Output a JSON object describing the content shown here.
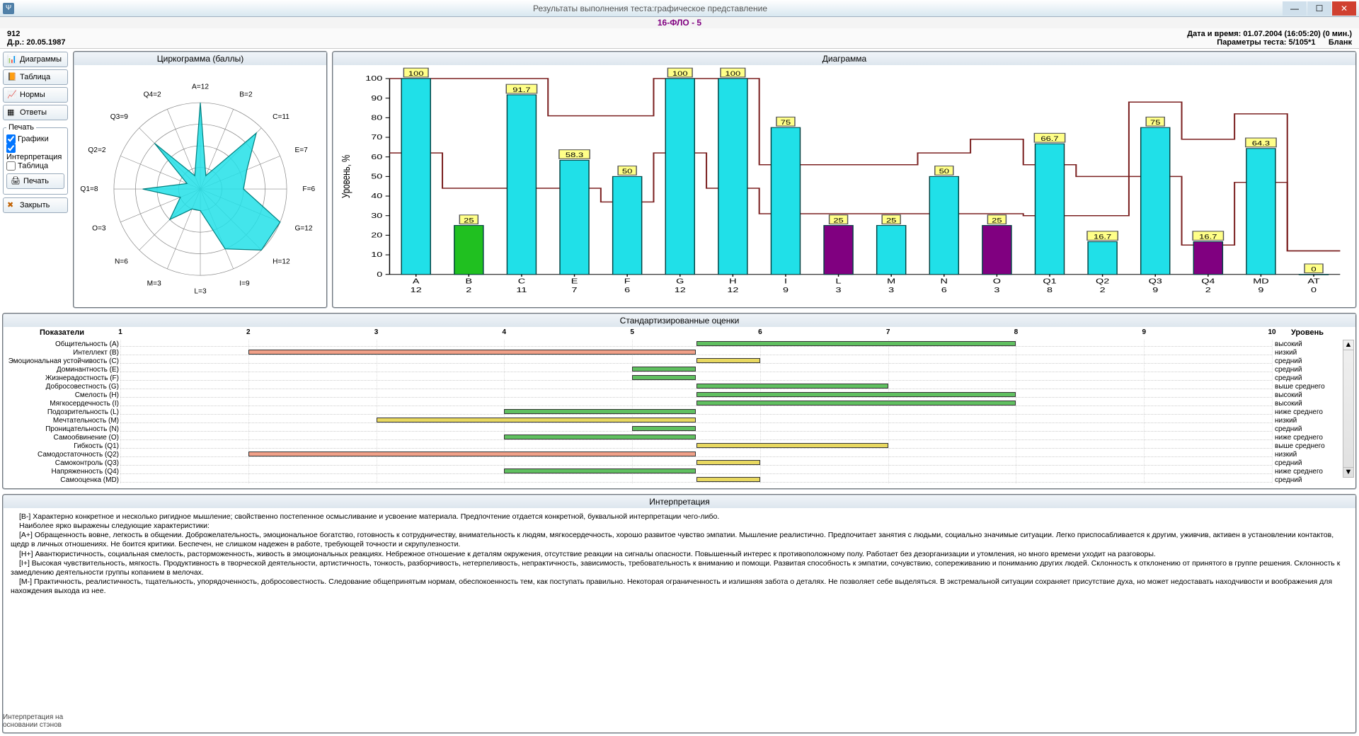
{
  "window": {
    "title": "Результаты выполнения теста:графическое представление",
    "subtitle": "16-ФЛО - 5"
  },
  "header": {
    "patient_id": "912",
    "birthdate_label": "Д.р.: 20.05.1987",
    "datetime_label": "Дата и время:",
    "datetime_value": "01.07.2004 (16:05:20) (0 мин.)",
    "params_label": "Параметры теста:",
    "params_value": "5/105*1",
    "blank": "Бланк"
  },
  "sidebar": {
    "btn_diag": "Диаграммы",
    "btn_table": "Таблица",
    "btn_norms": "Нормы",
    "btn_answers": "Ответы",
    "print_title": "Печать",
    "chk_graphs": "Графики",
    "chk_interp": "Интерпретация",
    "chk_table": "Таблица",
    "btn_print": " Печать",
    "btn_close": "Закрыть",
    "footer_note": "Интерпретация на основании стэнов"
  },
  "circo": {
    "title": "Циркограмма (баллы)",
    "max": 12,
    "fill": "#22e0e8",
    "stroke": "#008080",
    "factors": [
      {
        "code": "A",
        "v": 12
      },
      {
        "code": "B",
        "v": 2
      },
      {
        "code": "C",
        "v": 11
      },
      {
        "code": "E",
        "v": 7
      },
      {
        "code": "F",
        "v": 6
      },
      {
        "code": "G",
        "v": 12
      },
      {
        "code": "H",
        "v": 12
      },
      {
        "code": "I",
        "v": 9
      },
      {
        "code": "L",
        "v": 3
      },
      {
        "code": "M",
        "v": 3
      },
      {
        "code": "N",
        "v": 6
      },
      {
        "code": "O",
        "v": 3
      },
      {
        "code": "Q1",
        "v": 8
      },
      {
        "code": "Q2",
        "v": 2
      },
      {
        "code": "Q3",
        "v": 9
      },
      {
        "code": "Q4",
        "v": 2
      }
    ]
  },
  "diagram": {
    "title": "Диаграмма",
    "ylabel": "Уровень, %",
    "ymax": 100,
    "ytick": 10,
    "bar_color": "#20e0e8",
    "bar_border": "#004040",
    "line_color": "#7b2020",
    "label_bg": "#ffff88",
    "items": [
      {
        "code": "A",
        "raw": 12,
        "pct": 100,
        "lo": 62,
        "hi": 100,
        "color": "#20e0e8"
      },
      {
        "code": "B",
        "raw": 2,
        "pct": 25,
        "lo": 44,
        "hi": 100,
        "color": "#20c020"
      },
      {
        "code": "C",
        "raw": 11,
        "pct": 91.7,
        "lo": 44,
        "hi": 100,
        "color": "#20e0e8"
      },
      {
        "code": "E",
        "raw": 7,
        "pct": 58.3,
        "lo": 44,
        "hi": 81,
        "color": "#20e0e8"
      },
      {
        "code": "F",
        "raw": 6,
        "pct": 50,
        "lo": 37,
        "hi": 81,
        "color": "#20e0e8"
      },
      {
        "code": "G",
        "raw": 12,
        "pct": 100,
        "lo": 62,
        "hi": 100,
        "color": "#20e0e8"
      },
      {
        "code": "H",
        "raw": 12,
        "pct": 100,
        "lo": 44,
        "hi": 100,
        "color": "#20e0e8"
      },
      {
        "code": "I",
        "raw": 9,
        "pct": 75,
        "lo": 31,
        "hi": 56,
        "color": "#20e0e8"
      },
      {
        "code": "L",
        "raw": 3,
        "pct": 25,
        "lo": 31,
        "hi": 56,
        "color": "#800080"
      },
      {
        "code": "M",
        "raw": 3,
        "pct": 25,
        "lo": 31,
        "hi": 56,
        "color": "#20e0e8"
      },
      {
        "code": "N",
        "raw": 6,
        "pct": 50,
        "lo": 31,
        "hi": 62,
        "color": "#20e0e8"
      },
      {
        "code": "O",
        "raw": 3,
        "pct": 25,
        "lo": 31,
        "hi": 69,
        "color": "#800080"
      },
      {
        "code": "Q1",
        "raw": 8,
        "pct": 66.7,
        "lo": 30,
        "hi": 56,
        "color": "#20e0e8"
      },
      {
        "code": "Q2",
        "raw": 2,
        "pct": 16.7,
        "lo": 30,
        "hi": 50,
        "color": "#20e0e8"
      },
      {
        "code": "Q3",
        "raw": 9,
        "pct": 75,
        "lo": 50,
        "hi": 88,
        "color": "#20e0e8"
      },
      {
        "code": "Q4",
        "raw": 2,
        "pct": 16.7,
        "lo": 15,
        "hi": 69,
        "color": "#800080"
      },
      {
        "code": "MD",
        "raw": 9,
        "pct": 64.3,
        "lo": 47,
        "hi": 82,
        "color": "#20e0e8"
      },
      {
        "code": "AT",
        "raw": 0,
        "pct": 0,
        "lo": 12,
        "hi": 12,
        "color": "#20e0e8"
      }
    ]
  },
  "std": {
    "title": "Стандартизированные оценки",
    "left_header": "Показатели",
    "right_header": "Уровень",
    "min": 1,
    "max": 10,
    "mid": 5.5,
    "rows": [
      {
        "lbl": "Общительность (A)",
        "sten": 8,
        "color": "#60c060",
        "level": "высокий"
      },
      {
        "lbl": "Интеллект (B)",
        "sten": 2,
        "color": "#f0a088",
        "level": "низкий"
      },
      {
        "lbl": "Эмоциональная устойчивость (C)",
        "sten": 6,
        "color": "#e8d860",
        "level": "средний"
      },
      {
        "lbl": "Доминантность (E)",
        "sten": 5,
        "color": "#60c060",
        "level": "средний"
      },
      {
        "lbl": "Жизнерадостность (F)",
        "sten": 5,
        "color": "#60c060",
        "level": "средний"
      },
      {
        "lbl": "Добросовестность (G)",
        "sten": 7,
        "color": "#60c060",
        "level": "выше среднего"
      },
      {
        "lbl": "Смелость (H)",
        "sten": 8,
        "color": "#60c060",
        "level": "высокий"
      },
      {
        "lbl": "Мягкосердечность (I)",
        "sten": 8,
        "color": "#60c060",
        "level": "высокий"
      },
      {
        "lbl": "Подозрительность (L)",
        "sten": 4,
        "color": "#60c060",
        "level": "ниже среднего"
      },
      {
        "lbl": "Мечтательность (M)",
        "sten": 3,
        "color": "#e8d860",
        "level": "низкий"
      },
      {
        "lbl": "Проницательность (N)",
        "sten": 5,
        "color": "#60c060",
        "level": "средний"
      },
      {
        "lbl": "Самообвинение (O)",
        "sten": 4,
        "color": "#60c060",
        "level": "ниже среднего"
      },
      {
        "lbl": "Гибкость (Q1)",
        "sten": 7,
        "color": "#e8d860",
        "level": "выше среднего"
      },
      {
        "lbl": "Самодостаточность (Q2)",
        "sten": 2,
        "color": "#f0a088",
        "level": "низкий"
      },
      {
        "lbl": "Самоконтроль (Q3)",
        "sten": 6,
        "color": "#e8d860",
        "level": "средний"
      },
      {
        "lbl": "Напряженность (Q4)",
        "sten": 4,
        "color": "#60c060",
        "level": "ниже среднего"
      },
      {
        "lbl": "Самооценка (MD)",
        "sten": 6,
        "color": "#e8d860",
        "level": "средний"
      }
    ]
  },
  "interp": {
    "title": "Интерпретация",
    "paras": [
      "[B-]  Характерно конкретное и несколько ригидное мышление; свойственно постепенное осмысливание и усвоение материала. Предпочтение отдается конкретной, буквальной интерпретации чего-либо.",
      "Наиболее ярко выражены следующие характеристики:",
      "[A+]  Обращенность вовне, легкость в общении. Доброжелательность, эмоциональное богатство, готовность к сотрудничеству, внимательность к людям, мягкосердечность, хорошо развитое чувство эмпатии. Мышление реалистично. Предпочитает занятия с людьми, социально значимые ситуации. Легко приспосабливается к другим, уживчив, активен в установлении контактов, щедр в личных отношениях. Не боится критики. Беспечен, не слишком надежен в работе, требующей точности и скрупулезности.",
      "[H+]  Авантюристичность, социальная смелость, расторможенность, живость в эмоциональных реакциях. Небрежное отношение к деталям окружения, отсутствие реакции на сигналы опасности. Повышенный интерес к противоположному полу. Работает без дезорганизации и утомления, но много времени уходит на разговоры.",
      "[I+]  Высокая чувствительность, мягкость. Продуктивность в творческой деятельности, артистичность, тонкость, разборчивость, нетерпеливость, непрактичность, зависимость, требовательность к вниманию и помощи. Развитая способность к эмпатии, сочувствию, сопереживанию и пониманию других людей. Склонность к отклонению от принятого в группе решения. Склонность к замедлению деятельности группы копанием в мелочах.",
      "[M-]  Практичность, реалистичность, тщательность, упорядоченность, добросовестность. Следование общепринятым нормам, обеспокоенность тем, как поступать правильно. Некоторая ограниченность и излишняя забота о деталях. Не позволяет себе выделяться. В экстремальной ситуации сохраняет присутствие духа, но может недоставать находчивости и воображения для нахождения выхода из нее."
    ]
  }
}
